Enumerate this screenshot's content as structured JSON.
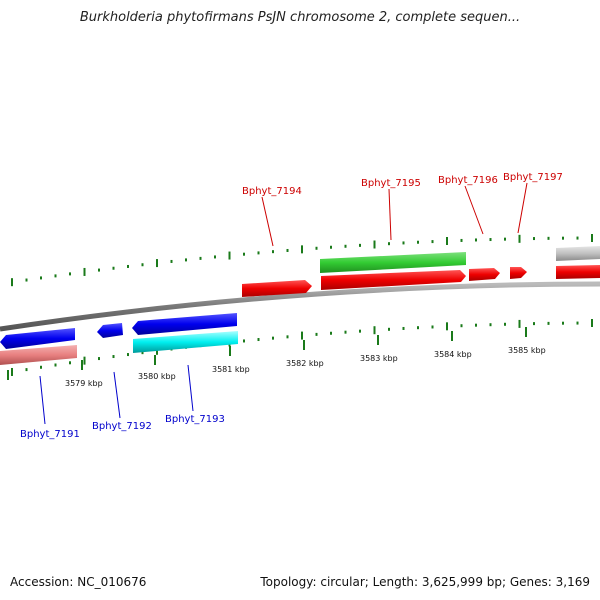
{
  "title": "Burkholderia phytofirmans PsJN chromosome 2, complete sequen...",
  "footer": {
    "accession": "Accession: NC_010676",
    "summary": "Topology: circular; Length: 3,625,999 bp; Genes: 3,169"
  },
  "ticks": [
    {
      "label": "3579 kbp"
    },
    {
      "label": "3580 kbp"
    },
    {
      "label": "3581 kbp"
    },
    {
      "label": "3582 kbp"
    },
    {
      "label": "3583 kbp"
    },
    {
      "label": "3584 kbp"
    },
    {
      "label": "3585 kbp"
    }
  ],
  "genes_forward": [
    {
      "label": "Bphyt_7194"
    },
    {
      "label": "Bphyt_7195"
    },
    {
      "label": "Bphyt_7196"
    },
    {
      "label": "Bphyt_7197"
    }
  ],
  "genes_reverse": [
    {
      "label": "Bphyt_7191"
    },
    {
      "label": "Bphyt_7192"
    },
    {
      "label": "Bphyt_7193"
    }
  ],
  "colors": {
    "forward_cds": "#ff0000",
    "forward_gene": "#33cc33",
    "reverse_cds": "#0000ee",
    "reverse_gene": "#00ffff",
    "reverse_pseudo": "#e88080",
    "other": "#c0c0c0",
    "backbone": "#888888",
    "tick": "#1a7a1a",
    "forward_label": "#cc0000",
    "reverse_label": "#0000cc"
  }
}
